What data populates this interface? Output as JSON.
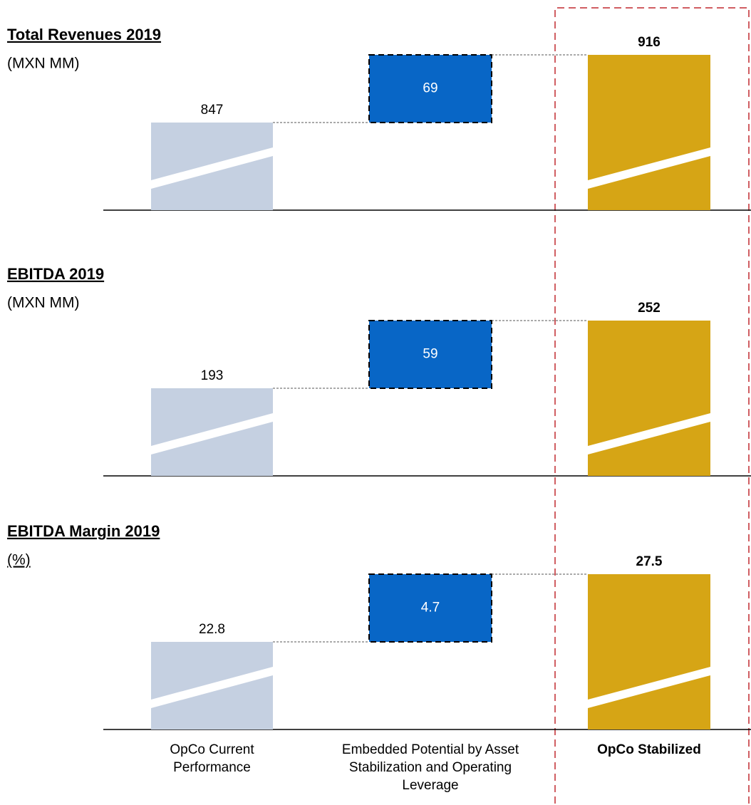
{
  "chart_data": [
    {
      "type": "waterfall",
      "title": "Total Revenues 2019",
      "subtitle": "(MXN MM)",
      "values": [
        847,
        69,
        916
      ],
      "colors": [
        "#c5d0e1",
        "#0866c6",
        "#d6a515"
      ]
    },
    {
      "type": "waterfall",
      "title": "EBITDA 2019",
      "subtitle": "(MXN MM)",
      "values": [
        193,
        59,
        252
      ],
      "colors": [
        "#c5d0e1",
        "#0866c6",
        "#d6a515"
      ]
    },
    {
      "type": "waterfall",
      "title": "EBITDA Margin 2019",
      "subtitle": "(%)",
      "values": [
        22.8,
        4.7,
        27.5
      ],
      "colors": [
        "#c5d0e1",
        "#0866c6",
        "#d6a515"
      ],
      "categories": [
        "OpCo Current Performance",
        "Embedded Potential by Asset Stabilization and Operating Leverage",
        "OpCo Stabilized"
      ]
    }
  ]
}
